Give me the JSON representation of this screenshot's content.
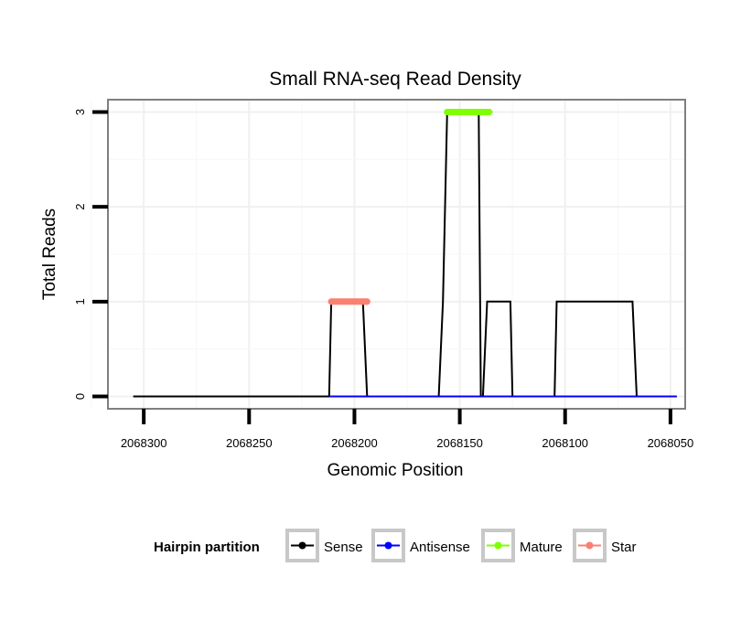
{
  "chart_data": {
    "type": "line",
    "title": "Small RNA-seq Read Density",
    "xlabel": "Genomic Position",
    "ylabel": "Total Reads",
    "xlim": [
      2068317,
      2068043
    ],
    "ylim": [
      -0.13,
      3.13
    ],
    "x_reversed": true,
    "x_ticks": [
      2068300,
      2068250,
      2068200,
      2068150,
      2068100,
      2068050
    ],
    "x_tick_labels": [
      "2068300",
      "2068250",
      "2068200",
      "2068150",
      "2068100",
      "2068050"
    ],
    "y_ticks": [
      0,
      1,
      2,
      3
    ],
    "y_tick_labels": [
      "0",
      "1",
      "2",
      "3"
    ],
    "grid": true,
    "legend_position": "bottom",
    "series": [
      {
        "name": "Sense",
        "color": "#000000",
        "x": [
          2068305,
          2068212,
          2068211,
          2068196,
          2068194,
          2068160,
          2068158,
          2068158,
          2068156,
          2068141,
          2068140,
          2068139,
          2068137,
          2068126,
          2068125,
          2068105,
          2068104,
          2068068,
          2068066,
          2068047
        ],
        "y": [
          0,
          0,
          1,
          1,
          0,
          0,
          1,
          1,
          3,
          3,
          0,
          0,
          1,
          1,
          0,
          0,
          1,
          1,
          0,
          0
        ]
      },
      {
        "name": "Antisense",
        "color": "#0000ff",
        "x": [
          2068212,
          2068194,
          2068160,
          2068140,
          2068125,
          2068105,
          2068068,
          2068047
        ],
        "y": [
          0,
          0,
          0,
          0,
          0,
          0,
          0,
          0
        ]
      },
      {
        "name": "Mature",
        "color": "#7fff00",
        "x": [
          2068156,
          2068136
        ],
        "y": [
          3,
          3
        ]
      },
      {
        "name": "Star",
        "color": "#fa8072",
        "x": [
          2068211,
          2068194
        ],
        "y": [
          1,
          1
        ]
      }
    ]
  },
  "legend": {
    "title": "Hairpin partition",
    "items": [
      {
        "label": "Sense",
        "color": "#000000"
      },
      {
        "label": "Antisense",
        "color": "#0000ff"
      },
      {
        "label": "Mature",
        "color": "#7fff00"
      },
      {
        "label": "Star",
        "color": "#fa8072"
      }
    ]
  }
}
